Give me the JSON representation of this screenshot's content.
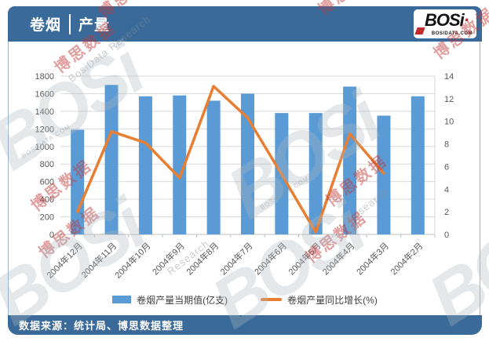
{
  "page": {
    "title_primary": "卷烟",
    "title_secondary": "产量"
  },
  "logo": {
    "text": "BOSi",
    "domain": "BOSIDATA.COM"
  },
  "footer": {
    "source": "数据来源：统计局、博思数据整理"
  },
  "legend": {
    "bar_label": "卷烟产量当期值(亿支)",
    "line_label": "卷烟产量同比增长(%)"
  },
  "watermarks": {
    "cn": "博思数据",
    "en": "BosiData Research",
    "en_short": "Research",
    "logo": "BOSi",
    "domain": "BOSIDATA.COM"
  },
  "colors": {
    "header_footer": "#3A6A99",
    "bar": "#5B9BD5",
    "line": "#E87E31",
    "grid": "#D9D9D9",
    "axis": "#BFBFBF",
    "axis_text": "#595959"
  },
  "chart_data": {
    "type": "bar+line combo",
    "title": "卷烟产量",
    "categories": [
      "2004年12月",
      "2004年11月",
      "2004年10月",
      "2004年9月",
      "2004年8月",
      "2004年7月",
      "2004年6月",
      "2004年5月",
      "2004年4月",
      "2004年3月",
      "2004年2月"
    ],
    "series": [
      {
        "name": "卷烟产量当期值(亿支)",
        "type": "bar",
        "axis": "left",
        "color": "#5B9BD5",
        "values": [
          1190,
          1700,
          1570,
          1580,
          1520,
          1600,
          1380,
          1380,
          1680,
          1350,
          1570
        ]
      },
      {
        "name": "卷烟产量同比增长(%)",
        "type": "line",
        "axis": "right",
        "color": "#E87E31",
        "values": [
          2,
          9.1,
          8.1,
          5,
          13.1,
          10.3,
          5.3,
          0.2,
          8.9,
          5.4,
          null
        ]
      }
    ],
    "left_axis": {
      "min": 0,
      "max": 1800,
      "step": 200
    },
    "right_axis": {
      "min": 0,
      "max": 14,
      "step": 2
    },
    "grid": true,
    "legend_position": "bottom",
    "x_label_rotation": -45
  }
}
